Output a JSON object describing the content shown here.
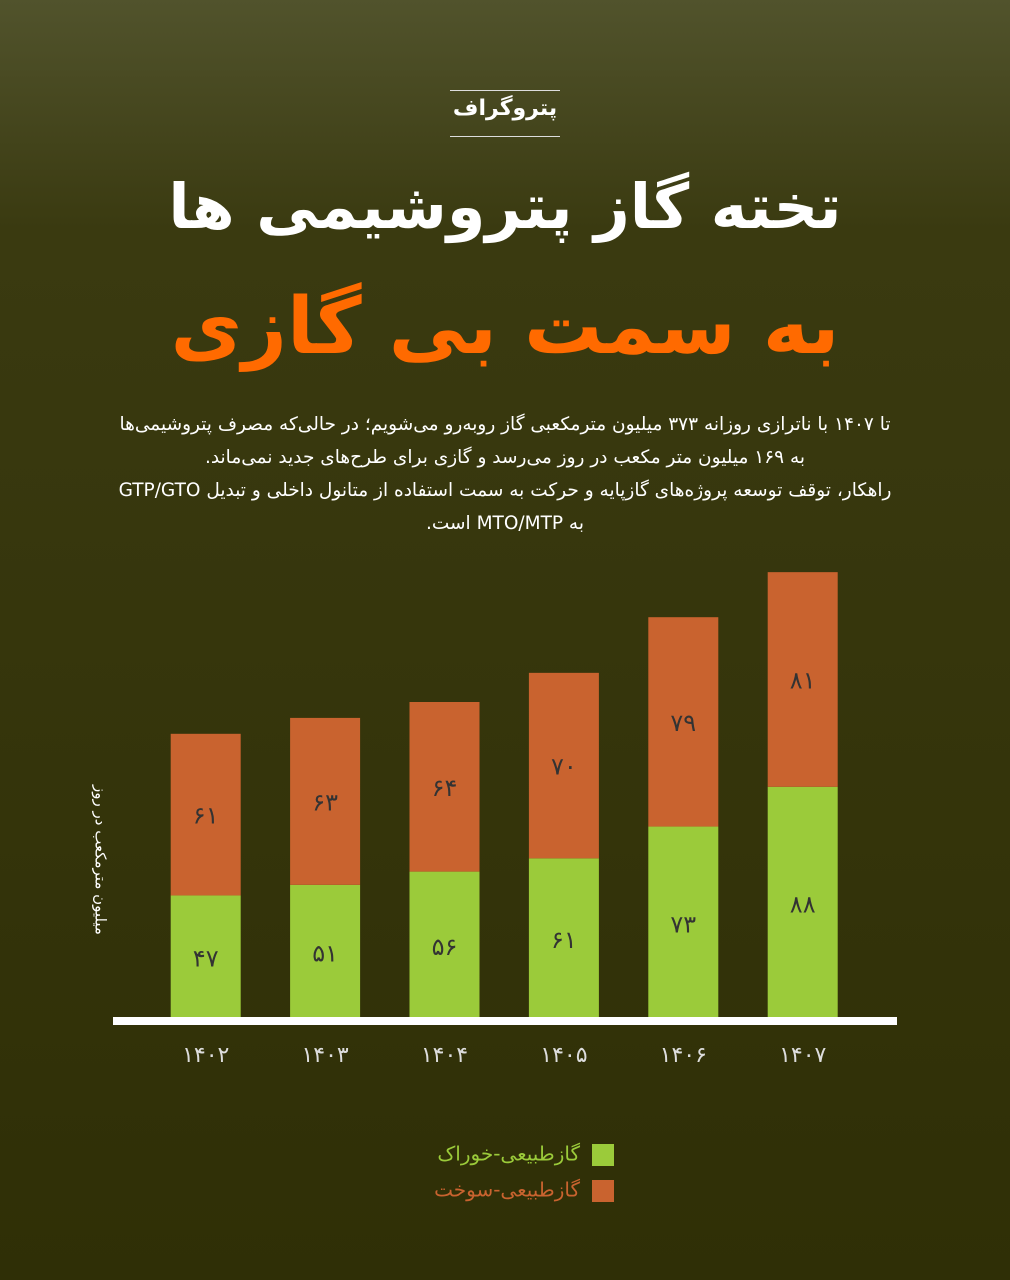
{
  "header": {
    "logo": "پتروگراف",
    "title_line1": "تخته گاز پتروشیمی ها",
    "title_line2": "به سمت بی گازی",
    "description": [
      "تا ۱۴۰۷ با ناترازی روزانه ۳۷۳ میلیون مترمکعبی گاز روبه‌رو می‌شویم؛ در حالی‌که مصرف پتروشیمی‌ها",
      "به ۱۶۹ میلیون متر مکعب در روز می‌رسد  و گازی برای طرح‌های جدید نمی‌ماند.",
      "راهکار، توقف توسعه پروژه‌های گازپایه و حرکت به سمت استفاده از متانول داخلی و تبدیل GTP/GTO",
      "به MTO/MTP است."
    ]
  },
  "chart_data": {
    "type": "stacked_bar",
    "ylabel": "میلیون مترمکعب در روز",
    "categories": [
      "۱۴۰۲",
      "۱۴۰۳",
      "۱۴۰۴",
      "۱۴۰۵",
      "۱۴۰۶",
      "۱۴۰۷"
    ],
    "series": [
      {
        "name": "گازطبیعی-خوراک",
        "color": "#9bcb3a",
        "values": [
          47,
          51,
          56,
          61,
          73,
          88
        ],
        "value_labels": [
          "۴۷",
          "۵۱",
          "۵۶",
          "۶۱",
          "۷۳",
          "۸۸"
        ]
      },
      {
        "name": "گازطبیعی-سوخت",
        "color": "#c9632f",
        "values": [
          61,
          63,
          64,
          70,
          79,
          81
        ],
        "value_labels": [
          "۶۱",
          "۶۳",
          "۶۴",
          "۷۰",
          "۷۹",
          "۸۱"
        ]
      }
    ],
    "ylim": [
      0,
      180
    ]
  }
}
